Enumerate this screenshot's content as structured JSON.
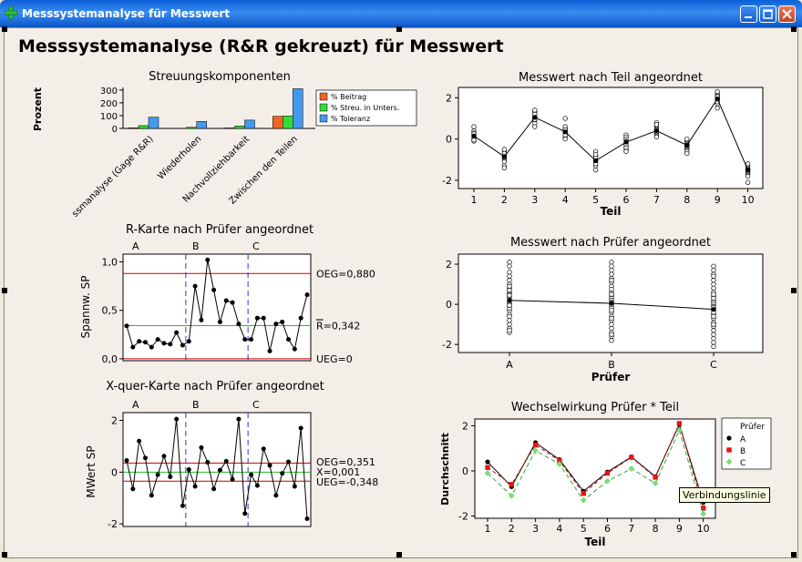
{
  "window": {
    "title": "Messsystemanalyse für Messwert"
  },
  "page_title": "Messsystemanalyse (R&R gekreuzt) für Messwert",
  "tooltip": "Verbindungslinie",
  "colors": {
    "red": "#cc0000",
    "green": "#22bb22",
    "blue": "#1f3fcc",
    "bar_orange": "#ee6622",
    "bar_green": "#33dd33",
    "bar_blue": "#4499ee"
  },
  "chart_data": [
    {
      "id": "components",
      "type": "bar",
      "title": "Streuungskomponenten",
      "ylabel": "Prozent",
      "categories": [
        "ssmanalyse (Gage R&R)",
        "Wiederholen",
        "Nachvollziehbarkeit",
        "Zwischen den Teilen"
      ],
      "series": [
        {
          "name": "% Beitrag",
          "values": [
            5,
            1,
            4,
            95
          ]
        },
        {
          "name": "% Streu. in Unters.",
          "values": [
            22,
            10,
            19,
            97
          ]
        },
        {
          "name": "% Toleranz",
          "values": [
            88,
            55,
            65,
            310
          ]
        }
      ],
      "yticks": [
        0,
        100,
        200,
        300
      ],
      "ylim": [
        0,
        320
      ],
      "legend": "right"
    },
    {
      "id": "rchart",
      "type": "line",
      "title": "R-Karte nach Prüfer angeordnet",
      "ylabel": "Spannw. SP",
      "groups": [
        "A",
        "B",
        "C"
      ],
      "values": [
        0.34,
        0.12,
        0.18,
        0.17,
        0.12,
        0.2,
        0.16,
        0.15,
        0.27,
        0.14,
        0.18,
        0.75,
        0.4,
        1.02,
        0.71,
        0.38,
        0.6,
        0.58,
        0.36,
        0.2,
        0.2,
        0.42,
        0.42,
        0.08,
        0.36,
        0.38,
        0.2,
        0.1,
        0.42,
        0.66
      ],
      "yticks": [
        "0,0",
        "0,5",
        "1,0"
      ],
      "ylim": [
        -0.02,
        1.08
      ],
      "limits": {
        "ucl": 0.88,
        "center": 0.342,
        "lcl": 0.0
      },
      "limit_labels": {
        "ucl": "OEG=0,880",
        "center_sym": "R",
        "center": "=0,342",
        "lcl": "UEG=0"
      }
    },
    {
      "id": "xbar",
      "type": "line",
      "title": "X-quer-Karte nach Prüfer angeordnet",
      "ylabel": "MWert SP",
      "groups": [
        "A",
        "B",
        "C"
      ],
      "values": [
        0.45,
        -0.65,
        1.2,
        0.55,
        -0.9,
        -0.1,
        0.62,
        -0.18,
        2.05,
        -1.3,
        0.1,
        -0.55,
        0.95,
        0.38,
        -0.65,
        0.08,
        0.42,
        -0.28,
        2.05,
        -1.6,
        -0.1,
        -0.52,
        0.9,
        0.26,
        -0.9,
        -0.05,
        0.4,
        -0.55,
        1.7,
        -1.8
      ],
      "yticks": [
        "-2",
        "0",
        "2"
      ],
      "ylim": [
        -2.1,
        2.3
      ],
      "limits": {
        "ucl": 0.351,
        "center": 0.001,
        "lcl": -0.348
      },
      "limit_labels": {
        "ucl": "OEG=0,351",
        "center": "X=0,001",
        "lcl": "UEG=-0,348"
      }
    },
    {
      "id": "byteil",
      "type": "scatter",
      "title": "Messwert nach Teil angeordnet",
      "xlabel": "Teil",
      "categories": [
        "1",
        "2",
        "3",
        "4",
        "5",
        "6",
        "7",
        "8",
        "9",
        "10"
      ],
      "means": [
        0.15,
        -0.85,
        1.05,
        0.35,
        -1.05,
        -0.15,
        0.4,
        -0.3,
        1.95,
        -1.5
      ],
      "points": [
        [
          0.1,
          0.2,
          0.4,
          0.0,
          -0.1,
          0.6,
          0.3,
          0.15,
          -0.05,
          0.25
        ],
        [
          -0.6,
          -0.8,
          -1.0,
          -1.3,
          -0.7,
          -0.9,
          -0.5,
          -1.1,
          -0.85,
          -1.4
        ],
        [
          1.3,
          1.1,
          0.9,
          0.75,
          1.2,
          1.0,
          1.4,
          0.6,
          1.05,
          0.95
        ],
        [
          0.3,
          0.5,
          0.1,
          0.0,
          0.4,
          0.2,
          0.6,
          1.0,
          0.35,
          0.45
        ],
        [
          -0.6,
          -0.8,
          -1.1,
          -1.3,
          -1.5,
          -1.0,
          -0.9,
          -1.2,
          -0.75,
          -1.05
        ],
        [
          0.2,
          0.1,
          -0.2,
          -0.5,
          -0.3,
          -0.4,
          0.0,
          -0.1,
          -0.25,
          -0.6
        ],
        [
          0.4,
          0.6,
          0.8,
          0.2,
          0.3,
          0.1,
          0.5,
          0.7,
          0.35,
          0.45
        ],
        [
          -0.1,
          -0.3,
          -0.5,
          -0.6,
          0.0,
          -0.2,
          -0.4,
          -0.7,
          -0.25,
          -0.35
        ],
        [
          2.2,
          2.1,
          1.9,
          1.7,
          1.5,
          2.0,
          1.8,
          2.3,
          1.95,
          2.05
        ],
        [
          -1.3,
          -1.5,
          -1.7,
          -2.1,
          -1.4,
          -1.6,
          -1.2,
          -1.8,
          -1.55,
          -1.45
        ]
      ],
      "yticks": [
        "-2",
        "0",
        "2"
      ],
      "ylim": [
        -2.4,
        2.5
      ]
    },
    {
      "id": "bypruefer",
      "type": "scatter",
      "title": "Messwert nach Prüfer angeordnet",
      "xlabel": "Prüfer",
      "categories": [
        "A",
        "B",
        "C"
      ],
      "means": [
        0.2,
        0.05,
        -0.25
      ],
      "points": [
        [
          2.1,
          1.9,
          1.6,
          1.4,
          1.2,
          1.0,
          0.8,
          0.6,
          0.5,
          0.4,
          0.35,
          0.3,
          0.2,
          0.1,
          0.0,
          -0.1,
          -0.3,
          -0.5,
          -0.6,
          -0.8,
          -1.0,
          -1.2,
          -1.4,
          -1.3,
          0.45,
          0.15,
          -0.2,
          0.7,
          0.9,
          -0.05
        ],
        [
          2.1,
          1.9,
          1.7,
          1.5,
          1.3,
          1.1,
          0.9,
          0.6,
          0.4,
          0.3,
          0.2,
          0.1,
          0.0,
          -0.1,
          -0.2,
          -0.4,
          -0.6,
          -0.8,
          -1.0,
          -1.2,
          -1.4,
          -1.6,
          -1.8,
          -1.5,
          0.5,
          0.05,
          -0.3,
          0.75,
          1.2,
          -0.7
        ],
        [
          1.9,
          1.7,
          1.5,
          1.2,
          1.0,
          0.8,
          0.6,
          0.4,
          0.2,
          0.1,
          0.0,
          -0.1,
          -0.2,
          -0.3,
          -0.5,
          -0.7,
          -0.9,
          -1.1,
          -1.3,
          -1.5,
          -1.7,
          -1.9,
          -2.1,
          0.3,
          -0.4,
          0.5,
          -0.6,
          -0.15,
          1.4,
          -1.0
        ]
      ],
      "yticks": [
        "-2",
        "0",
        "2"
      ],
      "ylim": [
        -2.4,
        2.5
      ]
    },
    {
      "id": "interaction",
      "type": "line",
      "title": "Wechselwirkung Prüfer * Teil",
      "xlabel": "Teil",
      "ylabel": "Durchschnitt",
      "categories": [
        "1",
        "2",
        "3",
        "4",
        "5",
        "6",
        "7",
        "8",
        "9",
        "10"
      ],
      "legend_title": "Prüfer",
      "series": [
        {
          "name": "A",
          "values": [
            0.4,
            -0.7,
            1.25,
            0.5,
            -0.9,
            -0.05,
            0.62,
            -0.25,
            2.05,
            -1.4
          ]
        },
        {
          "name": "B",
          "values": [
            0.15,
            -0.6,
            1.15,
            0.45,
            -1.0,
            -0.1,
            0.6,
            -0.28,
            2.1,
            -1.65
          ]
        },
        {
          "name": "C",
          "values": [
            -0.1,
            -1.1,
            0.9,
            0.3,
            -1.3,
            -0.45,
            0.1,
            -0.55,
            1.8,
            -1.9
          ]
        }
      ],
      "yticks": [
        "-2",
        "0",
        "2"
      ],
      "ylim": [
        -2.1,
        2.3
      ],
      "legend": "right"
    }
  ]
}
